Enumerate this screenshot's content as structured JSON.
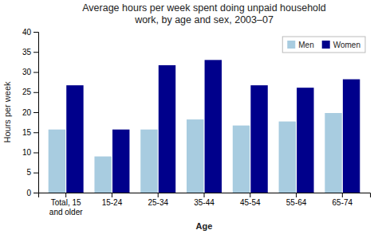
{
  "chart_data": {
    "type": "bar",
    "title": "Average hours per week spent doing unpaid household\nwork, by age and sex, 2003–07",
    "categories": [
      "Total, 15\nand older",
      "15-24",
      "25-34",
      "35-44",
      "45-54",
      "55-64",
      "65-74"
    ],
    "series": [
      {
        "name": "Men",
        "color": "#a8cce0",
        "values": [
          15.7,
          9.0,
          15.7,
          18.2,
          16.7,
          17.7,
          19.8
        ]
      },
      {
        "name": "Women",
        "color": "#00008b",
        "values": [
          26.7,
          15.7,
          31.7,
          33.0,
          26.7,
          26.1,
          28.2
        ]
      }
    ],
    "xlabel": "Age",
    "ylabel": "Hours per week",
    "ylim": [
      0,
      40
    ],
    "yticks": [
      0,
      5,
      10,
      15,
      20,
      25,
      30,
      35,
      40
    ],
    "grid": false,
    "legend": "upper right"
  }
}
